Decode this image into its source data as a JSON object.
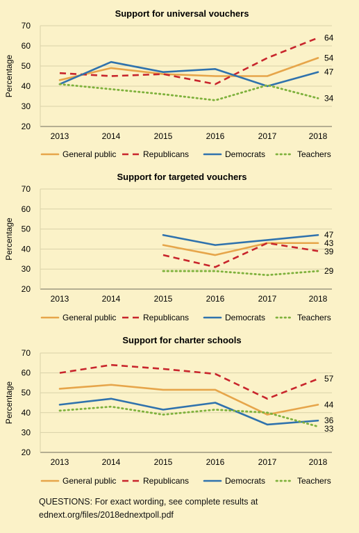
{
  "colors": {
    "background": "#fbf2c8",
    "grid": "#d9d1a8",
    "general_public": "#e6a54a",
    "republicans": "#c8252c",
    "democrats": "#2f72ad",
    "teachers": "#7eb13c"
  },
  "footnote": "QUESTIONS: For exact wording, see complete results at ednext.org/files/2018ednextpoll.pdf",
  "chart_data": [
    {
      "type": "line",
      "title": "Support for universal vouchers",
      "ylabel": "Percentage",
      "xlabel": "",
      "x": [
        "2013",
        "2014",
        "2015",
        "2016",
        "2017",
        "2018"
      ],
      "ylim": [
        20,
        70
      ],
      "yticks": [
        "20",
        "30",
        "40",
        "50",
        "60",
        "70"
      ],
      "grid": true,
      "legend": "bottom",
      "series": [
        {
          "name": "General public",
          "key": "general_public",
          "values": [
            43,
            49,
            46,
            45,
            45,
            54
          ],
          "end_label": "54"
        },
        {
          "name": "Republicans",
          "key": "republicans",
          "values": [
            46.5,
            45,
            46,
            41,
            54,
            64
          ],
          "end_label": "64"
        },
        {
          "name": "Democrats",
          "key": "democrats",
          "values": [
            41,
            52,
            47,
            48.5,
            40,
            47
          ],
          "end_label": "47"
        },
        {
          "name": "Teachers",
          "key": "teachers",
          "values": [
            41,
            38.5,
            36,
            33,
            40.5,
            34
          ],
          "end_label": "34"
        }
      ]
    },
    {
      "type": "line",
      "title": "Support for targeted vouchers",
      "ylabel": "Percentage",
      "xlabel": "",
      "x": [
        "2013",
        "2014",
        "2015",
        "2016",
        "2017",
        "2018"
      ],
      "ylim": [
        20,
        70
      ],
      "yticks": [
        "20",
        "30",
        "40",
        "50",
        "60",
        "70"
      ],
      "grid": true,
      "legend": "bottom",
      "series": [
        {
          "name": "General public",
          "key": "general_public",
          "values": [
            null,
            null,
            42,
            37,
            43,
            43
          ],
          "end_label": "43"
        },
        {
          "name": "Republicans",
          "key": "republicans",
          "values": [
            null,
            null,
            37,
            31,
            43,
            39
          ],
          "end_label": "39"
        },
        {
          "name": "Democrats",
          "key": "democrats",
          "values": [
            null,
            null,
            47,
            42,
            44.5,
            47
          ],
          "end_label": "47"
        },
        {
          "name": "Teachers",
          "key": "teachers",
          "values": [
            null,
            null,
            29,
            29,
            27,
            29
          ],
          "end_label": "29"
        }
      ]
    },
    {
      "type": "line",
      "title": "Support for charter schools",
      "ylabel": "Percentage",
      "xlabel": "",
      "x": [
        "2013",
        "2014",
        "2015",
        "2016",
        "2017",
        "2018"
      ],
      "ylim": [
        20,
        70
      ],
      "yticks": [
        "20",
        "30",
        "40",
        "50",
        "60",
        "70"
      ],
      "grid": true,
      "legend": "bottom",
      "series": [
        {
          "name": "General public",
          "key": "general_public",
          "values": [
            52,
            54,
            51.5,
            51.5,
            39,
            44
          ],
          "end_label": "44"
        },
        {
          "name": "Republicans",
          "key": "republicans",
          "values": [
            60,
            64,
            62,
            59.5,
            47,
            57
          ],
          "end_label": "57"
        },
        {
          "name": "Democrats",
          "key": "democrats",
          "values": [
            44,
            47,
            41.5,
            45,
            34,
            36
          ],
          "end_label": "36"
        },
        {
          "name": "Teachers",
          "key": "teachers",
          "values": [
            41,
            43,
            39,
            41.5,
            40,
            33
          ],
          "end_label": "33"
        }
      ]
    }
  ]
}
